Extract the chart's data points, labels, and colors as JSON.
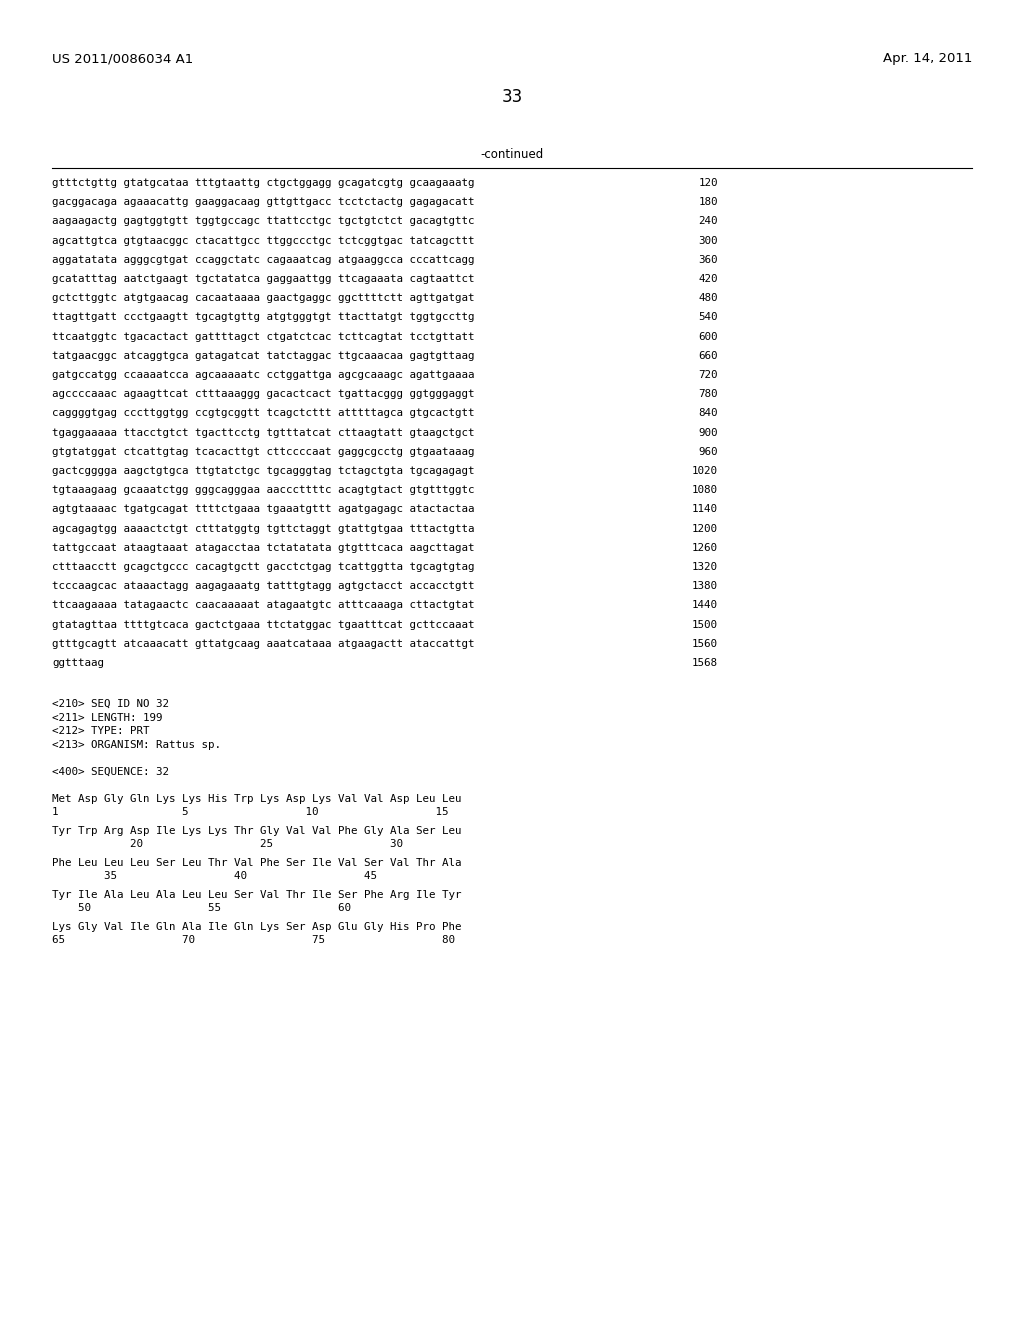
{
  "header_left": "US 2011/0086034 A1",
  "header_right": "Apr. 14, 2011",
  "page_number": "33",
  "continued_label": "-continued",
  "background_color": "#ffffff",
  "text_color": "#000000",
  "sequence_lines": [
    [
      "gtttctgttg gtatgcataa tttgtaattg ctgctggagg gcagatcgtg gcaagaaatg",
      "120"
    ],
    [
      "gacggacaga agaaacattg gaaggacaag gttgttgacc tcctctactg gagagacatt",
      "180"
    ],
    [
      "aagaagactg gagtggtgtt tggtgccagc ttattcctgc tgctgtctct gacagtgttc",
      "240"
    ],
    [
      "agcattgtca gtgtaacggc ctacattgcc ttggccctgc tctcggtgac tatcagcttt",
      "300"
    ],
    [
      "aggatatata agggcgtgat ccaggctatc cagaaatcag atgaaggcca cccattcagg",
      "360"
    ],
    [
      "gcatatttag aatctgaagt tgctatatca gaggaattgg ttcagaaata cagtaattct",
      "420"
    ],
    [
      "gctcttggtc atgtgaacag cacaataaaa gaactgaggc ggcttttctt agttgatgat",
      "480"
    ],
    [
      "ttagttgatt ccctgaagtt tgcagtgttg atgtgggtgt ttacttatgt tggtgccttg",
      "540"
    ],
    [
      "ttcaatggtc tgacactact gattttagct ctgatctcac tcttcagtat tcctgttatt",
      "600"
    ],
    [
      "tatgaacggc atcaggtgca gatagatcat tatctaggac ttgcaaacaa gagtgttaag",
      "660"
    ],
    [
      "gatgccatgg ccaaaatcca agcaaaaatc cctggattga agcgcaaagc agattgaaaa",
      "720"
    ],
    [
      "agccccaaac agaagttcat ctttaaaggg gacactcact tgattacggg ggtgggaggt",
      "780"
    ],
    [
      "caggggtgag cccttggtgg ccgtgcggtt tcagctcttt atttttagca gtgcactgtt",
      "840"
    ],
    [
      "tgaggaaaaa ttacctgtct tgacttcctg tgtttatcat cttaagtatt gtaagctgct",
      "900"
    ],
    [
      "gtgtatggat ctcattgtag tcacacttgt cttccccaat gaggcgcctg gtgaataaag",
      "960"
    ],
    [
      "gactcgggga aagctgtgca ttgtatctgc tgcagggtag tctagctgta tgcagagagt",
      "1020"
    ],
    [
      "tgtaaagaag gcaaatctgg gggcagggaa aacccttttc acagtgtact gtgtttggtc",
      "1080"
    ],
    [
      "agtgtaaaac tgatgcagat ttttctgaaa tgaaatgttt agatgagagc atactactaa",
      "1140"
    ],
    [
      "agcagagtgg aaaactctgt ctttatggtg tgttctaggt gtattgtgaa tttactgtta",
      "1200"
    ],
    [
      "tattgccaat ataagtaaat atagacctaa tctatatata gtgtttcaca aagcttagat",
      "1260"
    ],
    [
      "ctttaacctt gcagctgccc cacagtgctt gacctctgag tcattggtta tgcagtgtag",
      "1320"
    ],
    [
      "tcccaagcac ataaactagg aagagaaatg tatttgtagg agtgctacct accacctgtt",
      "1380"
    ],
    [
      "ttcaagaaaa tatagaactc caacaaaaat atagaatgtc atttcaaaga cttactgtat",
      "1440"
    ],
    [
      "gtatagttaa ttttgtcaca gactctgaaa ttctatggac tgaatttcat gcttccaaat",
      "1500"
    ],
    [
      "gtttgcagtt atcaaacatt gttatgcaag aaatcataaa atgaagactt ataccattgt",
      "1560"
    ],
    [
      "ggtttaag",
      "1568"
    ]
  ],
  "metadata_lines": [
    "<210> SEQ ID NO 32",
    "<211> LENGTH: 199",
    "<212> TYPE: PRT",
    "<213> ORGANISM: Rattus sp.",
    "",
    "<400> SEQUENCE: 32"
  ],
  "protein_blocks": [
    {
      "sequence_line": "Met Asp Gly Gln Lys Lys His Trp Lys Asp Lys Val Val Asp Leu Leu",
      "number_line": "1                   5                  10                  15"
    },
    {
      "sequence_line": "Tyr Trp Arg Asp Ile Lys Lys Thr Gly Val Val Phe Gly Ala Ser Leu",
      "number_line": "            20                  25                  30"
    },
    {
      "sequence_line": "Phe Leu Leu Leu Ser Leu Thr Val Phe Ser Ile Val Ser Val Thr Ala",
      "number_line": "        35                  40                  45"
    },
    {
      "sequence_line": "Tyr Ile Ala Leu Ala Leu Leu Ser Val Thr Ile Ser Phe Arg Ile Tyr",
      "number_line": "    50                  55                  60"
    },
    {
      "sequence_line": "Lys Gly Val Ile Gln Ala Ile Gln Lys Ser Asp Glu Gly His Pro Phe",
      "number_line": "65                  70                  75                  80"
    }
  ],
  "fig_width": 10.24,
  "fig_height": 13.2,
  "dpi": 100
}
